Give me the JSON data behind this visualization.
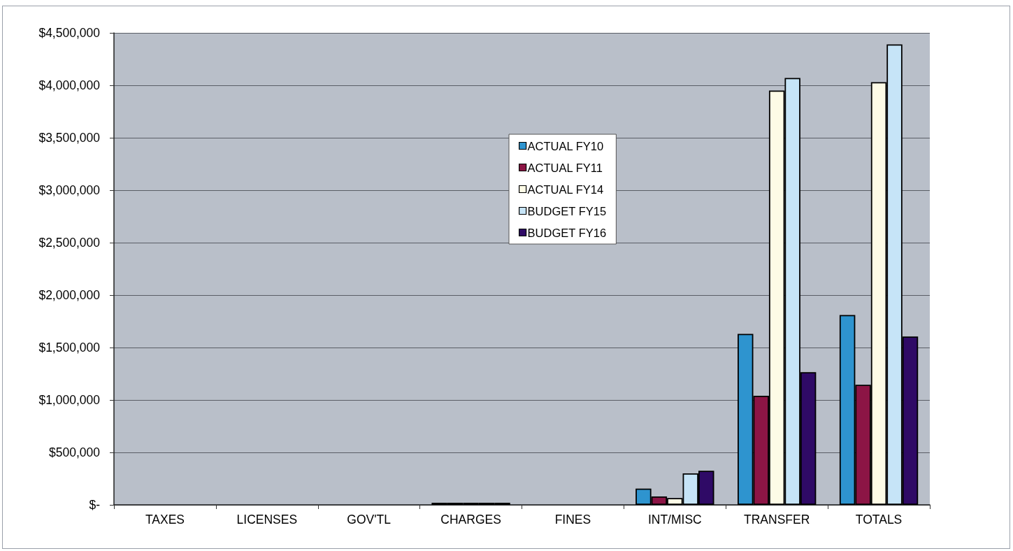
{
  "chart_data": {
    "type": "bar",
    "categories": [
      "TAXES",
      "LICENSES",
      "GOV'TL",
      "CHARGES",
      "FINES",
      "INT/MISC",
      "TRANSFER",
      "TOTALS"
    ],
    "series": [
      {
        "name": "ACTUAL FY10",
        "color": "#2e94cf",
        "values": [
          null,
          null,
          null,
          20000,
          null,
          155000,
          1630000,
          1810000
        ]
      },
      {
        "name": "ACTUAL FY11",
        "color": "#8c1545",
        "values": [
          null,
          null,
          null,
          20000,
          null,
          80000,
          1040000,
          1145000
        ]
      },
      {
        "name": "ACTUAL FY14",
        "color": "#fdfbe6",
        "values": [
          null,
          null,
          null,
          20000,
          null,
          65000,
          3950000,
          4030000
        ]
      },
      {
        "name": "BUDGET FY15",
        "color": "#c6e4f7",
        "values": [
          null,
          null,
          null,
          20000,
          null,
          300000,
          4070000,
          4390000
        ]
      },
      {
        "name": "BUDGET FY16",
        "color": "#2f0a66",
        "values": [
          null,
          null,
          null,
          20000,
          null,
          325000,
          1265000,
          1605000
        ]
      }
    ],
    "ylim": [
      0,
      4500000
    ],
    "yticks": [
      {
        "value": 0,
        "label": "$-"
      },
      {
        "value": 500000,
        "label": "$500,000"
      },
      {
        "value": 1000000,
        "label": "$1,000,000"
      },
      {
        "value": 1500000,
        "label": "$1,500,000"
      },
      {
        "value": 2000000,
        "label": "$2,000,000"
      },
      {
        "value": 2500000,
        "label": "$2,500,000"
      },
      {
        "value": 3000000,
        "label": "$3,000,000"
      },
      {
        "value": 3500000,
        "label": "$3,500,000"
      },
      {
        "value": 4000000,
        "label": "$4,000,000"
      },
      {
        "value": 4500000,
        "label": "$4,500,000"
      }
    ],
    "grid": "y",
    "legend": "center"
  }
}
